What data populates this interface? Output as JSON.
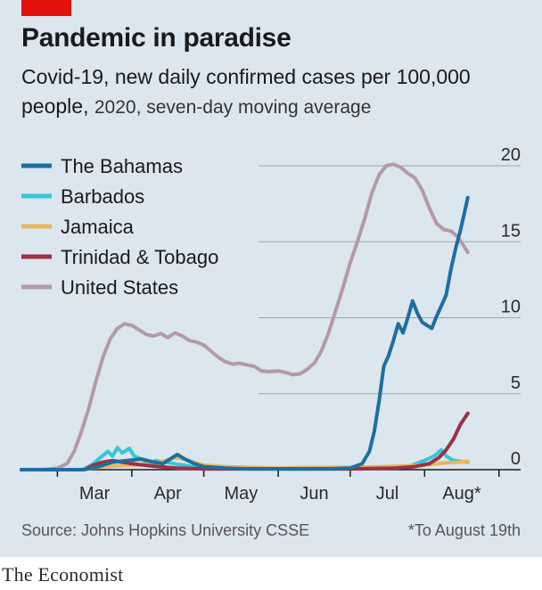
{
  "header": {
    "title": "Pandemic in paradise",
    "subtitle_main": "Covid-19, new daily confirmed cases per 100,000 people,",
    "subtitle_rest": "2020, seven-day moving average"
  },
  "footer": {
    "source": "Source: Johns Hopkins University CSSE",
    "footnote": "*To August 19th",
    "brand": "The Economist"
  },
  "colors": {
    "background": "#dbe6ef",
    "accent": "#e3120b"
  },
  "chart_data": {
    "type": "line",
    "ylabel": "",
    "ylim": [
      0,
      20
    ],
    "y_ticks": [
      {
        "value": 0,
        "label": "0"
      },
      {
        "value": 5,
        "label": "5"
      },
      {
        "value": 10,
        "label": "10"
      },
      {
        "value": 15,
        "label": "15"
      },
      {
        "value": 20,
        "label": "20"
      }
    ],
    "x_range": [
      "2020-02-15",
      "2020-09-10"
    ],
    "x_ticks": [
      {
        "date": "2020-03-01",
        "label": "Mar"
      },
      {
        "date": "2020-04-01",
        "label": "Apr"
      },
      {
        "date": "2020-05-01",
        "label": "May"
      },
      {
        "date": "2020-06-01",
        "label": "Jun"
      },
      {
        "date": "2020-07-01",
        "label": "Jul"
      },
      {
        "date": "2020-08-01",
        "label": "Aug*"
      },
      {
        "date": "2020-09-01",
        "label": ""
      }
    ],
    "legend_position": "top-left",
    "series": [
      {
        "name": "United States",
        "color": "#b39aa6",
        "points": [
          [
            "2020-02-15",
            0.0
          ],
          [
            "2020-02-25",
            0.02
          ],
          [
            "2020-03-01",
            0.1
          ],
          [
            "2020-03-05",
            0.4
          ],
          [
            "2020-03-08",
            1.2
          ],
          [
            "2020-03-11",
            2.5
          ],
          [
            "2020-03-14",
            4.0
          ],
          [
            "2020-03-17",
            5.8
          ],
          [
            "2020-03-20",
            7.4
          ],
          [
            "2020-03-23",
            8.6
          ],
          [
            "2020-03-26",
            9.3
          ],
          [
            "2020-03-29",
            9.6
          ],
          [
            "2020-04-01",
            9.5
          ],
          [
            "2020-04-04",
            9.2
          ],
          [
            "2020-04-07",
            8.9
          ],
          [
            "2020-04-10",
            8.8
          ],
          [
            "2020-04-13",
            8.95
          ],
          [
            "2020-04-16",
            8.7
          ],
          [
            "2020-04-19",
            9.0
          ],
          [
            "2020-04-22",
            8.8
          ],
          [
            "2020-04-25",
            8.5
          ],
          [
            "2020-04-28",
            8.4
          ],
          [
            "2020-05-01",
            8.2
          ],
          [
            "2020-05-04",
            7.8
          ],
          [
            "2020-05-07",
            7.4
          ],
          [
            "2020-05-10",
            7.1
          ],
          [
            "2020-05-13",
            6.95
          ],
          [
            "2020-05-16",
            7.0
          ],
          [
            "2020-05-19",
            6.9
          ],
          [
            "2020-05-22",
            6.8
          ],
          [
            "2020-05-25",
            6.5
          ],
          [
            "2020-05-28",
            6.45
          ],
          [
            "2020-06-01",
            6.5
          ],
          [
            "2020-06-04",
            6.4
          ],
          [
            "2020-06-07",
            6.25
          ],
          [
            "2020-06-10",
            6.3
          ],
          [
            "2020-06-13",
            6.6
          ],
          [
            "2020-06-16",
            7.0
          ],
          [
            "2020-06-19",
            7.8
          ],
          [
            "2020-06-22",
            9.0
          ],
          [
            "2020-06-25",
            10.5
          ],
          [
            "2020-06-28",
            12.0
          ],
          [
            "2020-07-01",
            13.6
          ],
          [
            "2020-07-04",
            15.0
          ],
          [
            "2020-07-07",
            16.5
          ],
          [
            "2020-07-10",
            18.2
          ],
          [
            "2020-07-13",
            19.4
          ],
          [
            "2020-07-16",
            20.0
          ],
          [
            "2020-07-19",
            20.1
          ],
          [
            "2020-07-22",
            19.9
          ],
          [
            "2020-07-25",
            19.5
          ],
          [
            "2020-07-28",
            19.2
          ],
          [
            "2020-07-31",
            18.4
          ],
          [
            "2020-08-03",
            17.2
          ],
          [
            "2020-08-06",
            16.2
          ],
          [
            "2020-08-09",
            15.8
          ],
          [
            "2020-08-12",
            15.7
          ],
          [
            "2020-08-15",
            15.3
          ],
          [
            "2020-08-17",
            14.8
          ],
          [
            "2020-08-19",
            14.3
          ]
        ]
      },
      {
        "name": "Barbados",
        "color": "#36c5d8",
        "points": [
          [
            "2020-02-15",
            0.0
          ],
          [
            "2020-03-12",
            0.0
          ],
          [
            "2020-03-16",
            0.4
          ],
          [
            "2020-03-19",
            0.8
          ],
          [
            "2020-03-22",
            1.2
          ],
          [
            "2020-03-24",
            0.9
          ],
          [
            "2020-03-26",
            1.45
          ],
          [
            "2020-03-28",
            1.1
          ],
          [
            "2020-03-31",
            1.4
          ],
          [
            "2020-04-02",
            0.9
          ],
          [
            "2020-04-05",
            0.7
          ],
          [
            "2020-04-08",
            0.4
          ],
          [
            "2020-04-11",
            0.6
          ],
          [
            "2020-04-14",
            0.5
          ],
          [
            "2020-04-17",
            0.45
          ],
          [
            "2020-04-20",
            0.35
          ],
          [
            "2020-04-23",
            0.3
          ],
          [
            "2020-04-26",
            0.2
          ],
          [
            "2020-05-01",
            0.2
          ],
          [
            "2020-05-08",
            0.1
          ],
          [
            "2020-05-15",
            0.15
          ],
          [
            "2020-05-22",
            0.1
          ],
          [
            "2020-06-01",
            0.05
          ],
          [
            "2020-06-15",
            0.05
          ],
          [
            "2020-07-01",
            0.05
          ],
          [
            "2020-07-15",
            0.1
          ],
          [
            "2020-07-25",
            0.2
          ],
          [
            "2020-08-01",
            0.6
          ],
          [
            "2020-08-05",
            0.9
          ],
          [
            "2020-08-08",
            1.3
          ],
          [
            "2020-08-10",
            0.9
          ],
          [
            "2020-08-13",
            0.6
          ],
          [
            "2020-08-16",
            0.55
          ],
          [
            "2020-08-19",
            0.5
          ]
        ]
      },
      {
        "name": "Jamaica",
        "color": "#e8b65a",
        "points": [
          [
            "2020-02-15",
            0.0
          ],
          [
            "2020-03-10",
            0.0
          ],
          [
            "2020-03-20",
            0.2
          ],
          [
            "2020-04-01",
            0.3
          ],
          [
            "2020-04-10",
            0.4
          ],
          [
            "2020-04-15",
            0.6
          ],
          [
            "2020-04-19",
            0.8
          ],
          [
            "2020-04-23",
            0.7
          ],
          [
            "2020-04-27",
            0.5
          ],
          [
            "2020-05-01",
            0.3
          ],
          [
            "2020-05-10",
            0.2
          ],
          [
            "2020-05-20",
            0.15
          ],
          [
            "2020-06-01",
            0.1
          ],
          [
            "2020-06-15",
            0.15
          ],
          [
            "2020-07-01",
            0.15
          ],
          [
            "2020-07-15",
            0.2
          ],
          [
            "2020-08-01",
            0.3
          ],
          [
            "2020-08-10",
            0.45
          ],
          [
            "2020-08-15",
            0.5
          ],
          [
            "2020-08-19",
            0.55
          ]
        ]
      },
      {
        "name": "Trinidad & Tobago",
        "color": "#9e2f45",
        "points": [
          [
            "2020-02-15",
            0.0
          ],
          [
            "2020-03-12",
            0.0
          ],
          [
            "2020-03-16",
            0.3
          ],
          [
            "2020-03-20",
            0.5
          ],
          [
            "2020-03-24",
            0.6
          ],
          [
            "2020-03-28",
            0.5
          ],
          [
            "2020-04-01",
            0.4
          ],
          [
            "2020-04-06",
            0.3
          ],
          [
            "2020-04-12",
            0.2
          ],
          [
            "2020-04-20",
            0.1
          ],
          [
            "2020-05-01",
            0.05
          ],
          [
            "2020-06-01",
            0.05
          ],
          [
            "2020-07-01",
            0.05
          ],
          [
            "2020-07-20",
            0.1
          ],
          [
            "2020-07-28",
            0.2
          ],
          [
            "2020-08-03",
            0.4
          ],
          [
            "2020-08-07",
            0.8
          ],
          [
            "2020-08-10",
            1.3
          ],
          [
            "2020-08-13",
            2.0
          ],
          [
            "2020-08-16",
            3.0
          ],
          [
            "2020-08-19",
            3.7
          ]
        ]
      },
      {
        "name": "The Bahamas",
        "color": "#1d6f9f",
        "points": [
          [
            "2020-02-15",
            0.0
          ],
          [
            "2020-03-12",
            0.0
          ],
          [
            "2020-03-18",
            0.2
          ],
          [
            "2020-03-24",
            0.5
          ],
          [
            "2020-03-30",
            0.6
          ],
          [
            "2020-04-05",
            0.7
          ],
          [
            "2020-04-10",
            0.5
          ],
          [
            "2020-04-14",
            0.4
          ],
          [
            "2020-04-17",
            0.7
          ],
          [
            "2020-04-20",
            1.0
          ],
          [
            "2020-04-23",
            0.7
          ],
          [
            "2020-04-27",
            0.4
          ],
          [
            "2020-05-01",
            0.2
          ],
          [
            "2020-05-10",
            0.1
          ],
          [
            "2020-05-20",
            0.05
          ],
          [
            "2020-06-01",
            0.05
          ],
          [
            "2020-06-20",
            0.05
          ],
          [
            "2020-07-01",
            0.1
          ],
          [
            "2020-07-06",
            0.4
          ],
          [
            "2020-07-09",
            1.2
          ],
          [
            "2020-07-11",
            2.5
          ],
          [
            "2020-07-13",
            4.5
          ],
          [
            "2020-07-15",
            6.8
          ],
          [
            "2020-07-17",
            7.5
          ],
          [
            "2020-07-19",
            8.5
          ],
          [
            "2020-07-21",
            9.6
          ],
          [
            "2020-07-23",
            9.0
          ],
          [
            "2020-07-25",
            10.0
          ],
          [
            "2020-07-27",
            11.1
          ],
          [
            "2020-07-29",
            10.3
          ],
          [
            "2020-07-31",
            9.7
          ],
          [
            "2020-08-02",
            9.5
          ],
          [
            "2020-08-04",
            9.3
          ],
          [
            "2020-08-06",
            10.1
          ],
          [
            "2020-08-08",
            10.8
          ],
          [
            "2020-08-10",
            11.5
          ],
          [
            "2020-08-12",
            13.2
          ],
          [
            "2020-08-14",
            14.6
          ],
          [
            "2020-08-16",
            15.8
          ],
          [
            "2020-08-18",
            17.2
          ],
          [
            "2020-08-19",
            17.9
          ]
        ]
      }
    ]
  }
}
